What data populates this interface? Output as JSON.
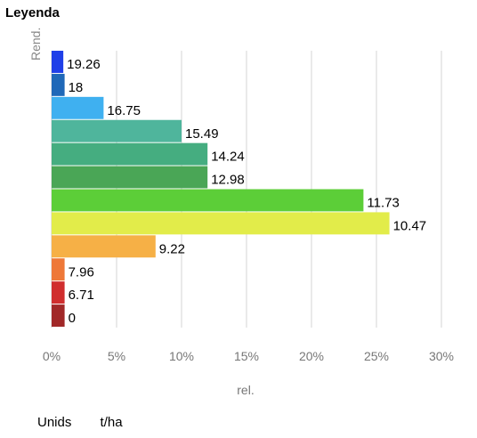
{
  "legend": {
    "title": "Leyenda"
  },
  "units": {
    "label": "Unids",
    "value": "t/ha"
  },
  "chart_data": {
    "type": "bar",
    "orientation": "horizontal",
    "ylabel": "Rend.",
    "xlabel": "rel.",
    "xlim": [
      0,
      30
    ],
    "x_ticks": [
      "0%",
      "5%",
      "10%",
      "15%",
      "20%",
      "25%",
      "30%"
    ],
    "grid": true,
    "categories": [
      "19.26",
      "18",
      "16.75",
      "15.49",
      "14.24",
      "12.98",
      "11.73",
      "10.47",
      "9.22",
      "7.96",
      "6.71",
      "0"
    ],
    "values": [
      0.9,
      1.0,
      4.0,
      10.0,
      12.0,
      12.0,
      24.0,
      26.0,
      8.0,
      1.0,
      1.0,
      1.0
    ],
    "colors": [
      "#1f3fe8",
      "#1f68b8",
      "#3fb0f0",
      "#4fb59c",
      "#45ad80",
      "#4aa656",
      "#5cce38",
      "#e2ec4a",
      "#f6b046",
      "#ee7838",
      "#d02e2e",
      "#a12828"
    ]
  }
}
